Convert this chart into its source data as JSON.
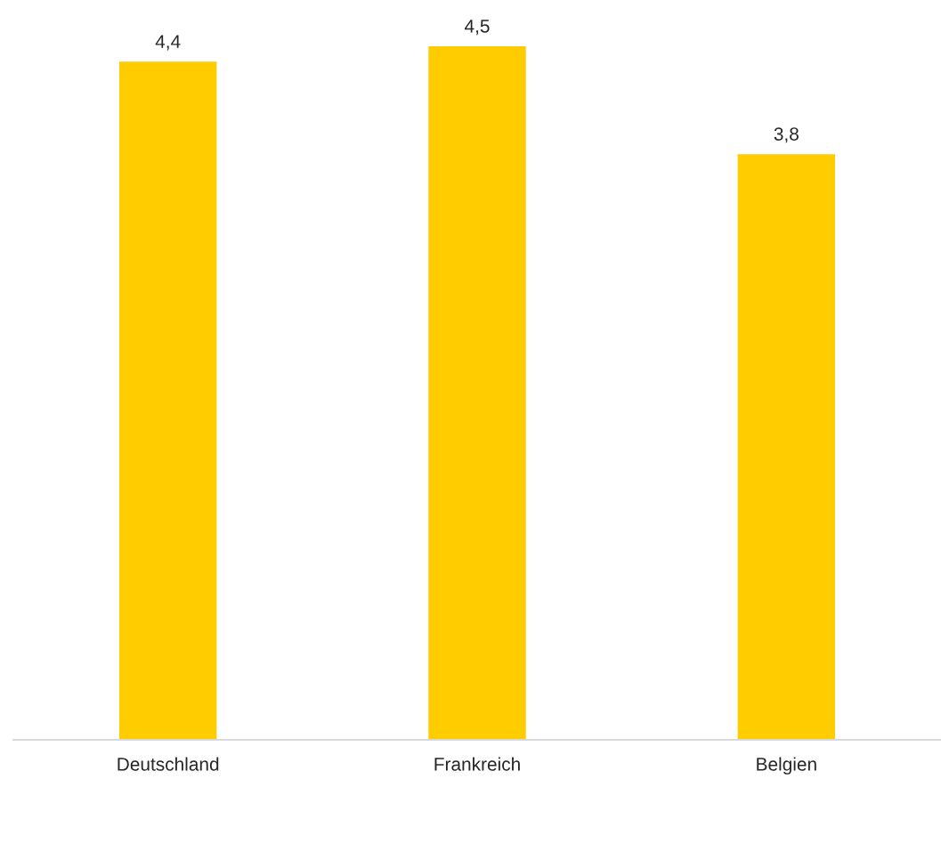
{
  "chart_data": {
    "type": "bar",
    "categories": [
      "Deutschland",
      "Frankreich",
      "Belgien"
    ],
    "values": [
      4.4,
      4.5,
      3.8
    ],
    "color": "#ffcc00",
    "value_labels": [
      "4,4",
      "4,5",
      "3,8"
    ],
    "grid": false,
    "legend": false
  }
}
